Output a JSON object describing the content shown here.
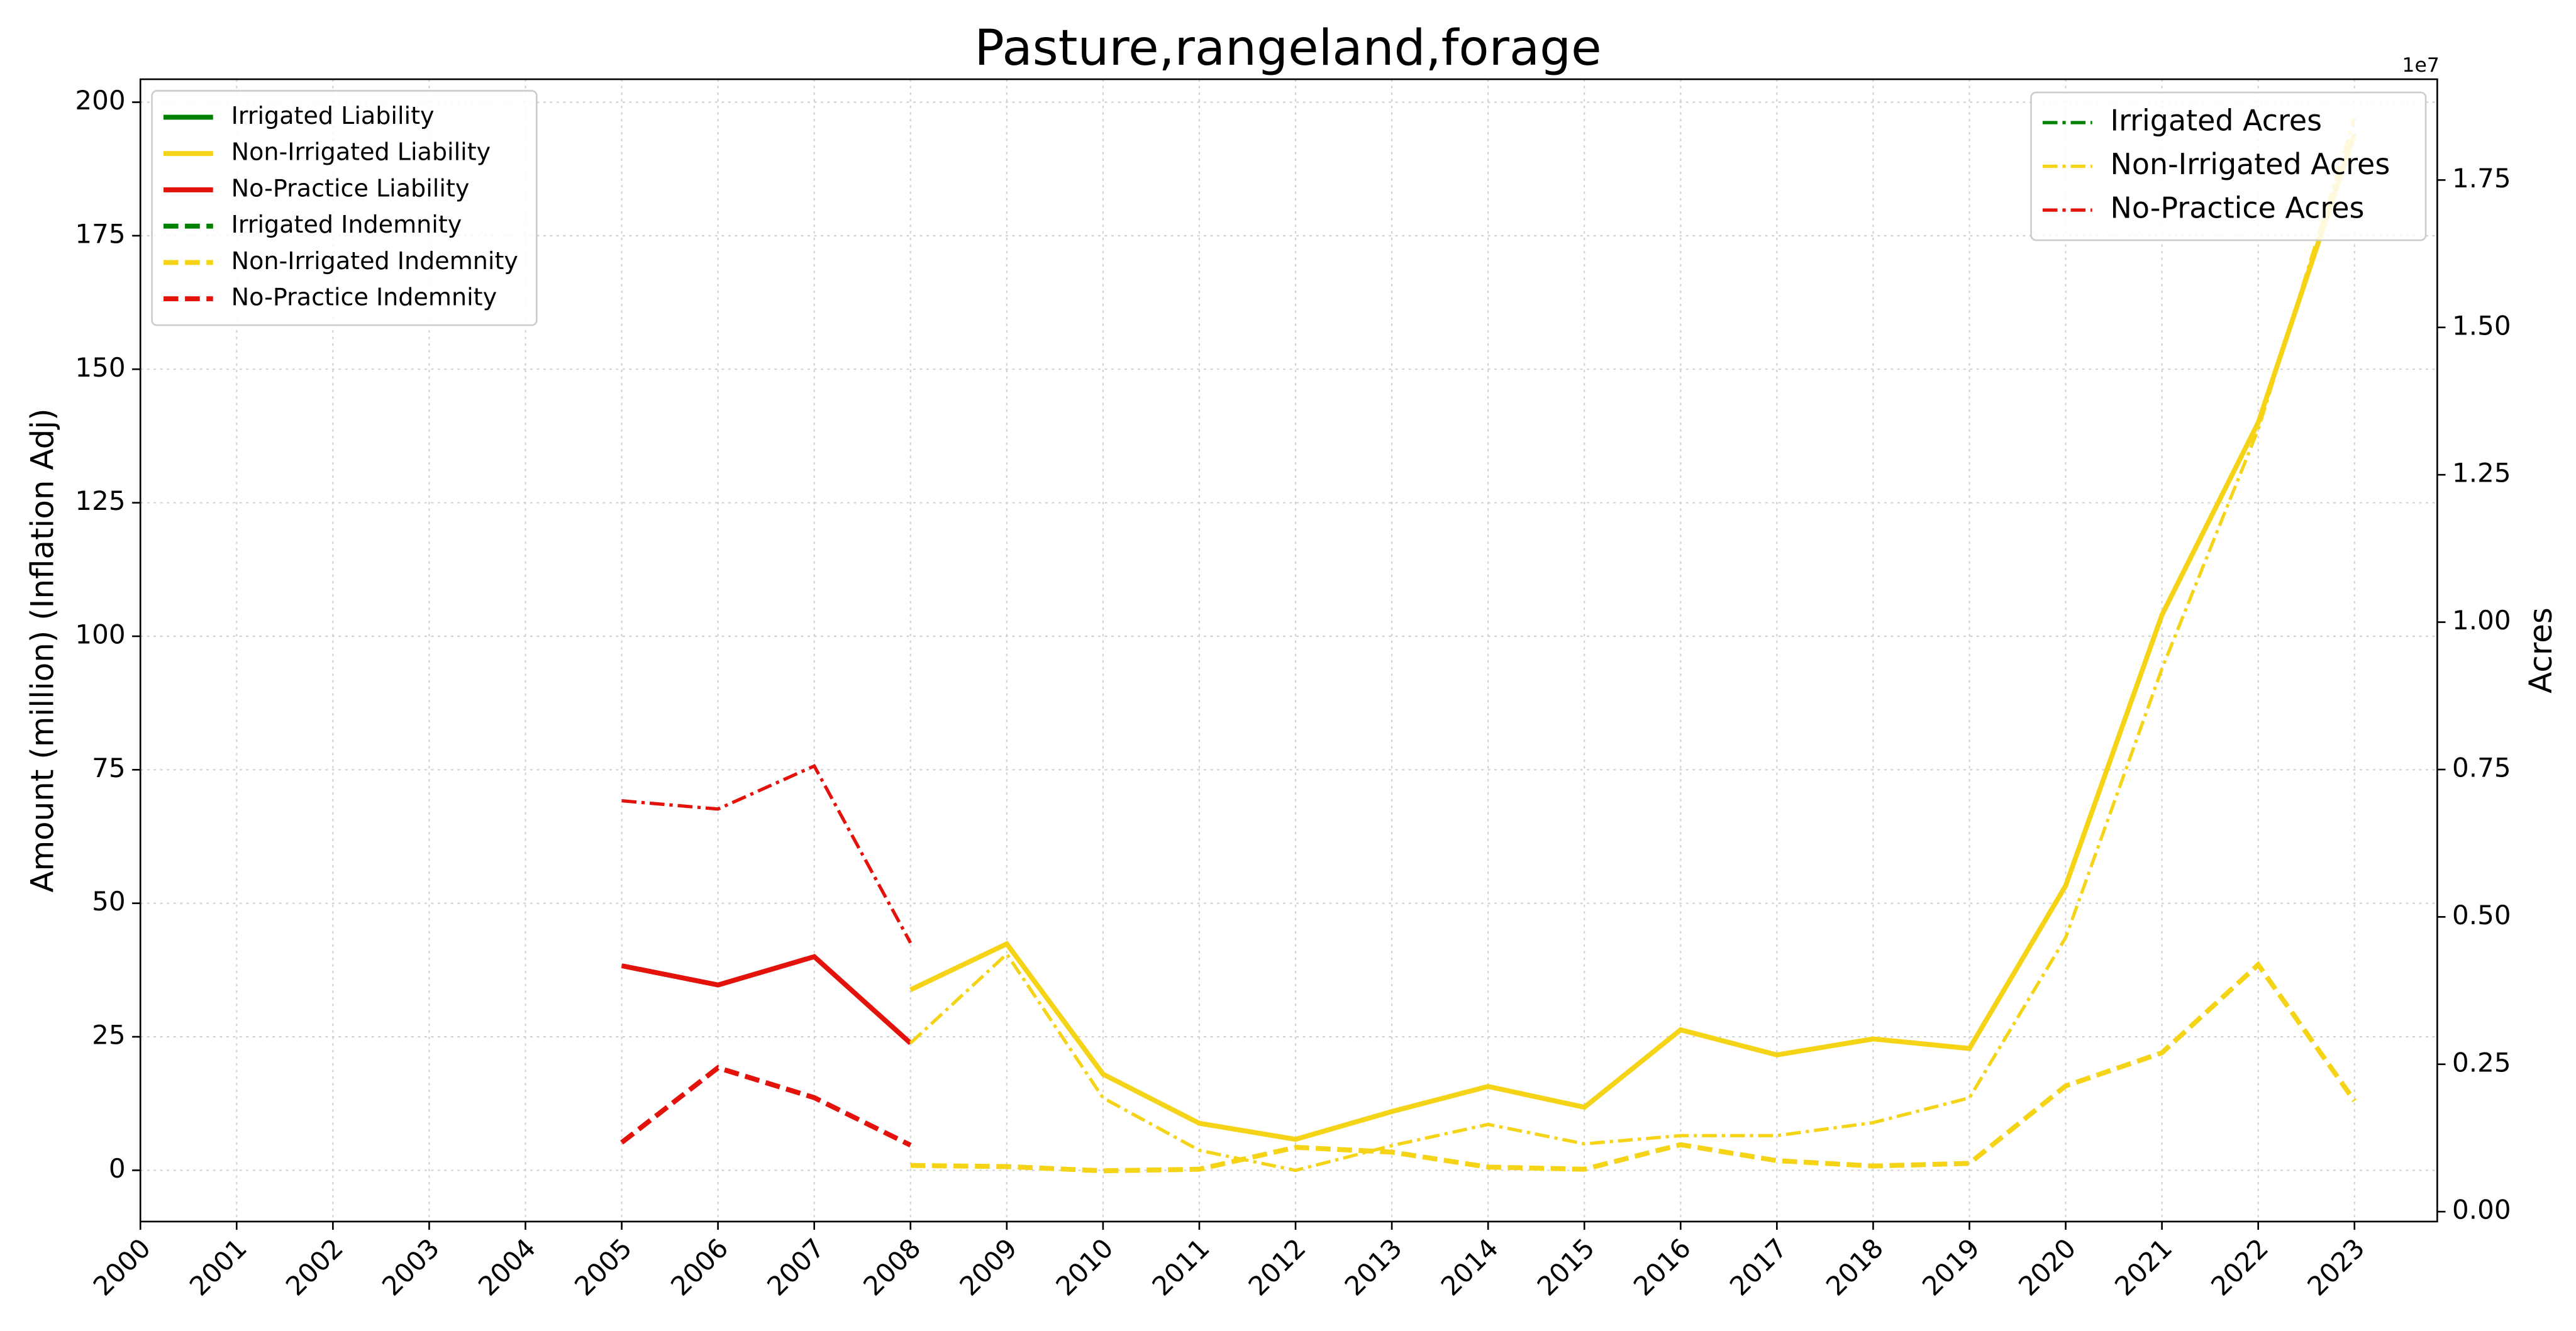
{
  "chart_data": {
    "type": "line",
    "title": "Pasture,rangeland,forage",
    "ylabel": "Amount (million) (Inflation Adj)",
    "y2label": "Acres",
    "y2offset": "1e7",
    "x": [
      2000,
      2001,
      2002,
      2003,
      2004,
      2005,
      2006,
      2007,
      2008,
      2009,
      2010,
      2011,
      2012,
      2013,
      2014,
      2015,
      2016,
      2017,
      2018,
      2019,
      2020,
      2021,
      2022,
      2023
    ],
    "xlim": [
      2000,
      2023.86
    ],
    "xticks": [
      2000,
      2001,
      2002,
      2003,
      2004,
      2005,
      2006,
      2007,
      2008,
      2009,
      2010,
      2011,
      2012,
      2013,
      2014,
      2015,
      2016,
      2017,
      2018,
      2019,
      2020,
      2021,
      2022,
      2023
    ],
    "ylim": [
      -9.6,
      204.3
    ],
    "yticks": [
      0,
      25,
      50,
      75,
      100,
      125,
      150,
      175,
      200
    ],
    "y2lim": [
      -168000,
      19210000
    ],
    "y2ticks": [
      {
        "value": 0,
        "label": "0.00"
      },
      {
        "value": 2500000,
        "label": "0.25"
      },
      {
        "value": 5000000,
        "label": "0.50"
      },
      {
        "value": 7500000,
        "label": "0.75"
      },
      {
        "value": 10000000,
        "label": "1.00"
      },
      {
        "value": 12500000,
        "label": "1.25"
      },
      {
        "value": 15000000,
        "label": "1.50"
      },
      {
        "value": 17500000,
        "label": "1.75"
      }
    ],
    "grid": true,
    "legend": "upper left",
    "legend2": "upper right",
    "series": [
      {
        "name": "Irrigated Liability",
        "color": "#008000",
        "linestyle": "solid",
        "values": [
          null,
          null,
          null,
          null,
          null,
          null,
          null,
          null,
          null,
          null,
          null,
          null,
          null,
          null,
          null,
          null,
          null,
          null,
          null,
          null,
          null,
          null,
          null,
          null
        ]
      },
      {
        "name": "Non-Irrigated Liability",
        "color": "#f5d418",
        "linestyle": "solid",
        "values": [
          null,
          null,
          null,
          null,
          null,
          null,
          null,
          null,
          33.8,
          42.4,
          18,
          8.8,
          5.8,
          11,
          15.7,
          11.8,
          26.3,
          21.6,
          24.6,
          22.8,
          53.3,
          104,
          140,
          194
        ]
      },
      {
        "name": "No-Practice Liability",
        "color": "#e3120b",
        "linestyle": "solid",
        "values": [
          null,
          null,
          null,
          null,
          null,
          38.3,
          34.7,
          40,
          23.8,
          null,
          null,
          null,
          null,
          null,
          null,
          null,
          null,
          null,
          null,
          null,
          null,
          null,
          null,
          null
        ]
      },
      {
        "name": "Irrigated Indemnity",
        "color": "#008000",
        "linestyle": "dashed",
        "values": [
          null,
          null,
          null,
          null,
          null,
          null,
          null,
          null,
          null,
          null,
          null,
          null,
          null,
          null,
          null,
          null,
          null,
          null,
          null,
          null,
          null,
          null,
          null,
          null
        ]
      },
      {
        "name": "Non-Irrigated Indemnity",
        "color": "#f5d418",
        "linestyle": "dashed",
        "values": [
          null,
          null,
          null,
          null,
          null,
          null,
          null,
          null,
          0.9,
          0.7,
          -0.1,
          0.2,
          4.3,
          3.4,
          0.6,
          0.2,
          4.8,
          1.8,
          0.8,
          1.3,
          15.8,
          22,
          38.5,
          13
        ]
      },
      {
        "name": "No-Practice Indemnity",
        "color": "#e3120b",
        "linestyle": "dashed",
        "values": [
          null,
          null,
          null,
          null,
          null,
          5.2,
          19.2,
          13.6,
          4.7,
          null,
          null,
          null,
          null,
          null,
          null,
          null,
          null,
          null,
          null,
          null,
          null,
          null,
          null,
          null
        ]
      },
      {
        "name": "Irrigated Acres",
        "color": "#008000",
        "linestyle": "dashdot",
        "axis": "y2",
        "values": [
          null,
          null,
          null,
          null,
          null,
          null,
          null,
          null,
          null,
          null,
          null,
          null,
          null,
          null,
          null,
          null,
          null,
          null,
          null,
          null,
          null,
          null,
          null,
          null
        ]
      },
      {
        "name": "Non-Irrigated Acres",
        "color": "#f5d418",
        "linestyle": "dashdot",
        "axis": "y2",
        "values": [
          null,
          null,
          null,
          null,
          null,
          null,
          null,
          null,
          2860000,
          4370000,
          1930000,
          1040000,
          700000,
          1120000,
          1480000,
          1150000,
          1290000,
          1290000,
          1510000,
          1930000,
          4650000,
          9210000,
          13270000,
          18540000
        ]
      },
      {
        "name": "No-Practice Acres",
        "color": "#e3120b",
        "linestyle": "dashdot",
        "axis": "y2",
        "values": [
          null,
          null,
          null,
          null,
          null,
          6970000,
          6830000,
          7560000,
          4560000,
          null,
          null,
          null,
          null,
          null,
          null,
          null,
          null,
          null,
          null,
          null,
          null,
          null,
          null,
          null
        ]
      }
    ]
  }
}
